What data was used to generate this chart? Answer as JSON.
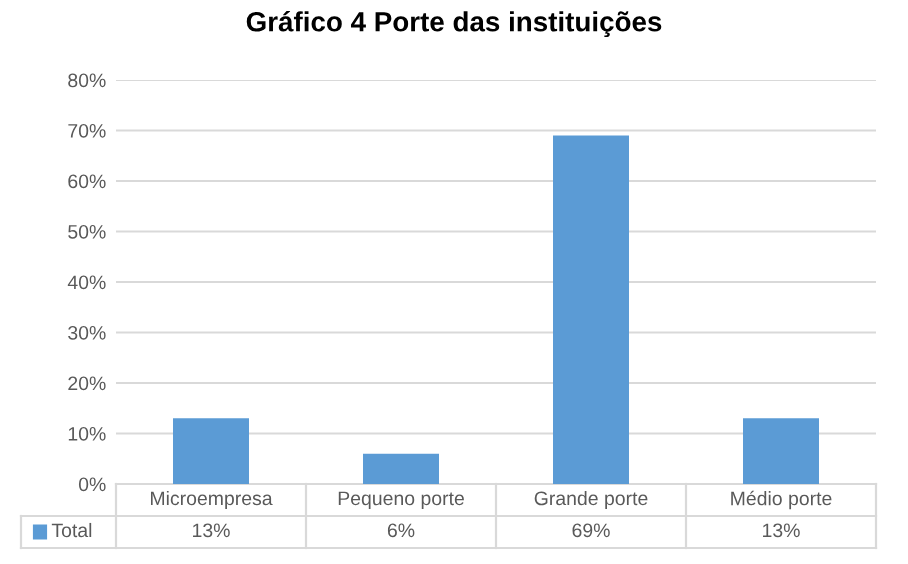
{
  "chart_data": {
    "type": "bar",
    "title": "Gráfico 4 Porte das instituições",
    "categories": [
      "Microempresa",
      "Pequeno porte",
      "Grande porte",
      "Médio porte"
    ],
    "series": [
      {
        "name": "Total",
        "color": "#5b9bd5",
        "values": [
          13,
          6,
          69,
          13
        ]
      }
    ],
    "value_labels": [
      "13%",
      "6%",
      "69%",
      "13%"
    ],
    "ylim": [
      0,
      80
    ],
    "yticks": [
      {
        "value": 0,
        "label": "0%"
      },
      {
        "value": 10,
        "label": "10%"
      },
      {
        "value": 20,
        "label": "20%"
      },
      {
        "value": 30,
        "label": "30%"
      },
      {
        "value": 40,
        "label": "40%"
      },
      {
        "value": 50,
        "label": "50%"
      },
      {
        "value": 60,
        "label": "60%"
      },
      {
        "value": 70,
        "label": "70%"
      },
      {
        "value": 80,
        "label": "80%"
      }
    ],
    "grid": "y"
  }
}
